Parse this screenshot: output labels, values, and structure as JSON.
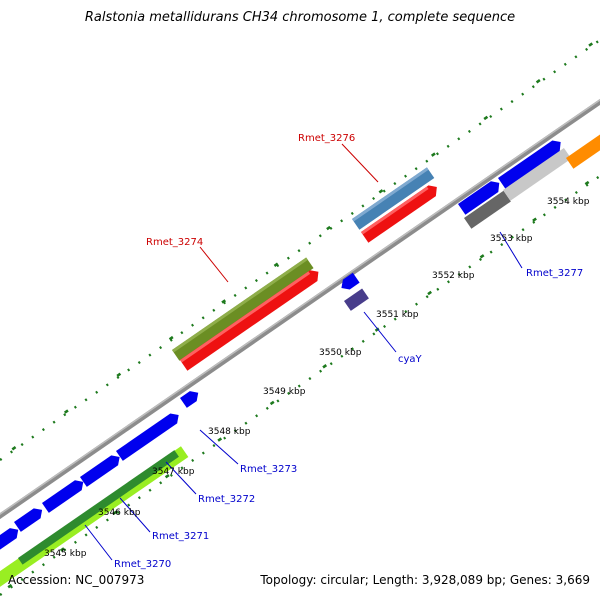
{
  "title": "Ralstonia metallidurans CH34 chromosome 1, complete sequence",
  "accession_line": "Accession: NC_007973",
  "summary_line": "Topology: circular; Length: 3,928,089 bp; Genes: 3,669",
  "colors": {
    "backbone": "#8c8c8c",
    "tick_major": "#1e7a1e",
    "tick_minor": "#1e7a1e",
    "label_red": "#cc0000",
    "label_blue": "#0000cc",
    "gene_blue": "#0000ee",
    "gene_red": "#ee1111",
    "gene_olive": "#6b8e23",
    "gene_steel": "#4682b4",
    "gene_lime": "#99ee22",
    "gene_darkgreen": "#2e8b2e",
    "gene_slate": "#483d8b",
    "gene_gray": "#666666",
    "gene_lightgray": "#c8c8c8",
    "gene_orange": "#ff8c00"
  },
  "tick_labels": [
    {
      "text": "3545 kbp",
      "kbp": 3545
    },
    {
      "text": "3546 kbp",
      "kbp": 3546
    },
    {
      "text": "3547 kbp",
      "kbp": 3547
    },
    {
      "text": "3548 kbp",
      "kbp": 3548
    },
    {
      "text": "3549 kbp",
      "kbp": 3549
    },
    {
      "text": "3550 kbp",
      "kbp": 3550
    },
    {
      "text": "3551 kbp",
      "kbp": 3551
    },
    {
      "text": "3552 kbp",
      "kbp": 3552
    },
    {
      "text": "3553 kbp",
      "kbp": 3553
    },
    {
      "text": "3554 kbp",
      "kbp": 3554
    }
  ],
  "gene_labels": [
    {
      "text": "Rmet_3276",
      "color": "red"
    },
    {
      "text": "Rmet_3274",
      "color": "red"
    },
    {
      "text": "Rmet_3277",
      "color": "blue"
    },
    {
      "text": "cyaY",
      "color": "blue"
    },
    {
      "text": "Rmet_3273",
      "color": "blue"
    },
    {
      "text": "Rmet_3272",
      "color": "blue"
    },
    {
      "text": "Rmet_3271",
      "color": "blue"
    },
    {
      "text": "Rmet_3270",
      "color": "blue"
    }
  ]
}
